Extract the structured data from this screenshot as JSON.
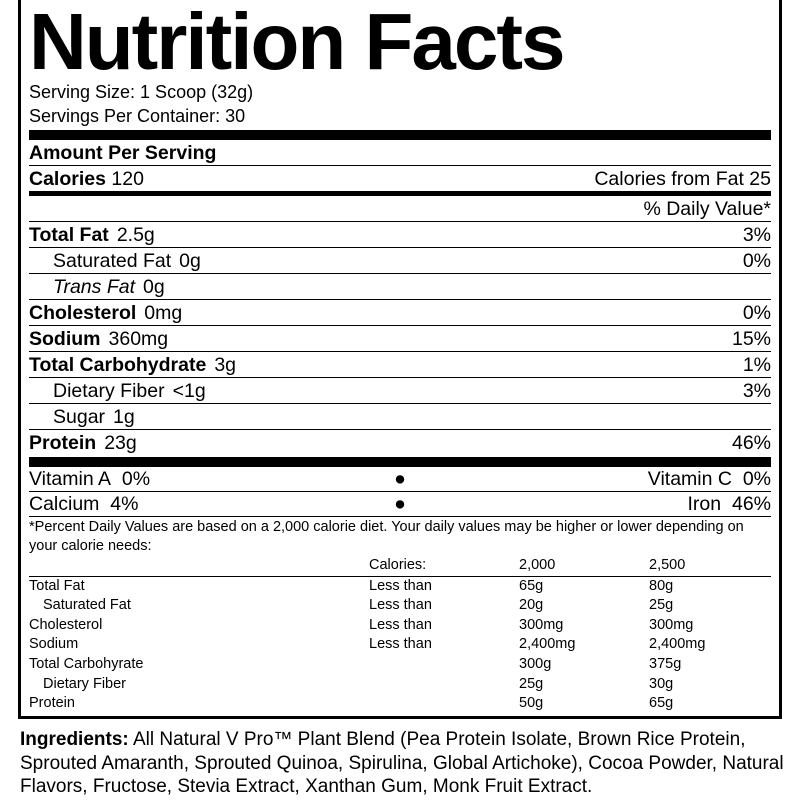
{
  "title": "Nutrition Facts",
  "serving_size": "Serving Size: 1 Scoop (32g)",
  "servings_per_container": "Servings Per Container: 30",
  "amount_per_serving": "Amount Per Serving",
  "calories": {
    "label": "Calories",
    "value": "120",
    "from_fat": "Calories from Fat 25"
  },
  "daily_value_header": "% Daily Value*",
  "nutrients": [
    {
      "name": "Total Fat",
      "amount": "2.5g",
      "dv": "3%"
    },
    {
      "name": "Saturated Fat",
      "amount": "0g",
      "dv": "0%"
    },
    {
      "name": "Trans Fat",
      "amount": "0g",
      "dv": ""
    },
    {
      "name": "Cholesterol",
      "amount": "0mg",
      "dv": "0%"
    },
    {
      "name": "Sodium",
      "amount": "360mg",
      "dv": "15%"
    },
    {
      "name": "Total Carbohydrate",
      "amount": "3g",
      "dv": "1%"
    },
    {
      "name": "Dietary Fiber",
      "amount": "<1g",
      "dv": "3%"
    },
    {
      "name": "Sugar",
      "amount": "1g",
      "dv": ""
    },
    {
      "name": "Protein",
      "amount": "23g",
      "dv": "46%"
    }
  ],
  "vitamins": [
    {
      "left": "Vitamin A",
      "left_dv": "0%",
      "right": "Vitamin C",
      "right_dv": "0%"
    },
    {
      "left": "Calcium",
      "left_dv": "4%",
      "right": "Iron",
      "right_dv": "46%"
    }
  ],
  "bullet": "●",
  "footnote": "*Percent Daily Values are based on a 2,000 calorie diet. Your daily values may be higher or lower depending on your calorie needs:",
  "footnote_table": {
    "header": [
      "",
      "Calories:",
      "2,000",
      "2,500"
    ],
    "rows": [
      [
        "Total Fat",
        "Less than",
        "65g",
        "80g"
      ],
      [
        "Saturated Fat",
        "Less than",
        "20g",
        "25g"
      ],
      [
        "Cholesterol",
        "Less than",
        "300mg",
        "300mg"
      ],
      [
        "Sodium",
        "Less than",
        "2,400mg",
        "2,400mg"
      ],
      [
        "Total Carbohyrate",
        "",
        "300g",
        "375g"
      ],
      [
        "Dietary Fiber",
        "",
        "25g",
        "30g"
      ],
      [
        "Protein",
        "",
        "50g",
        "65g"
      ]
    ]
  },
  "ingredients": {
    "label": "Ingredients:",
    "text": " All Natural V Pro™ Plant Blend (Pea Protein Isolate, Brown Rice Protein, Sprouted Amaranth, Sprouted Quinoa, Spirulina, Global Artichoke), Cocoa Powder, Natural Flavors, Fructose, Stevia Extract, Xanthan Gum, Monk Fruit Extract."
  }
}
